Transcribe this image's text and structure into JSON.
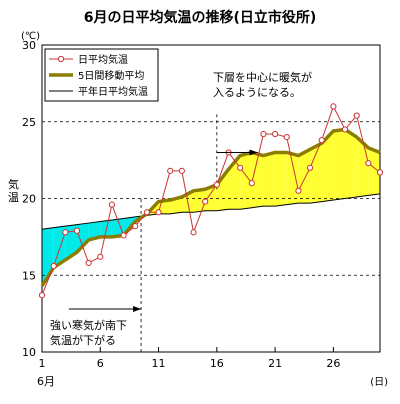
{
  "chart_data": {
    "type": "line",
    "title": "6月の日平均気温の推移(日立市役所)",
    "ylabel": "気温",
    "yunit": "(℃)",
    "xunit": "(日)",
    "xmonth": "6月",
    "x": [
      1,
      2,
      3,
      4,
      5,
      6,
      7,
      8,
      9,
      10,
      11,
      12,
      13,
      14,
      15,
      16,
      17,
      18,
      19,
      20,
      21,
      22,
      23,
      24,
      25,
      26,
      27,
      28,
      29,
      30
    ],
    "xticks": [
      1,
      6,
      11,
      16,
      21,
      26
    ],
    "yticks": [
      10,
      15,
      20,
      25,
      30
    ],
    "xlim": [
      1,
      30
    ],
    "ylim": [
      10,
      30
    ],
    "gridlines_y": [
      15,
      20,
      25
    ],
    "series": [
      {
        "name": "日平均気温",
        "color": "#cc3333",
        "style": "line-with-hollow-circle-markers",
        "values": [
          13.7,
          15.6,
          17.8,
          17.9,
          15.8,
          16.2,
          19.6,
          17.6,
          18.2,
          19.1,
          19.1,
          21.8,
          21.8,
          17.8,
          19.8,
          20.9,
          23.0,
          22.0,
          21.0,
          24.2,
          24.2,
          24.0,
          20.5,
          22.0,
          23.8,
          26.0,
          24.5,
          25.4,
          22.3,
          21.7
        ]
      },
      {
        "name": "5日間移動平均",
        "color": "#8b7d00",
        "style": "thick-line",
        "values": [
          14.3,
          15.5,
          16.0,
          16.5,
          17.3,
          17.5,
          17.5,
          17.6,
          18.5,
          19.0,
          19.8,
          19.9,
          20.1,
          20.5,
          20.6,
          20.9,
          21.9,
          22.8,
          23.0,
          22.8,
          23.0,
          23.0,
          22.8,
          23.2,
          23.6,
          24.4,
          24.5,
          24.0,
          23.3,
          23.0
        ]
      },
      {
        "name": "平年日平均気温",
        "color": "#000000",
        "style": "thin-line",
        "values": [
          18.0,
          18.1,
          18.2,
          18.3,
          18.4,
          18.5,
          18.6,
          18.7,
          18.8,
          18.9,
          19.0,
          19.0,
          19.1,
          19.1,
          19.2,
          19.2,
          19.3,
          19.3,
          19.4,
          19.5,
          19.5,
          19.6,
          19.7,
          19.7,
          19.8,
          19.9,
          20.0,
          20.1,
          20.2,
          20.3
        ]
      }
    ],
    "fill_below_normal_color": "#00eaea",
    "fill_above_normal_color": "#ffff33",
    "annotations": [
      {
        "name": "annotation-warm",
        "lines": [
          "下層を中心に暖気が",
          "入るようになる。"
        ],
        "x_day": 16,
        "arrow_to_day": 19.5,
        "arrow_y": 23.0
      },
      {
        "name": "annotation-cold",
        "lines": [
          "強い寒気が南下",
          "気温が下がる"
        ],
        "x_day": 9.5,
        "arrow_from_day": 3.3,
        "arrow_y": 12.8
      }
    ],
    "legend_position": "top-left"
  }
}
